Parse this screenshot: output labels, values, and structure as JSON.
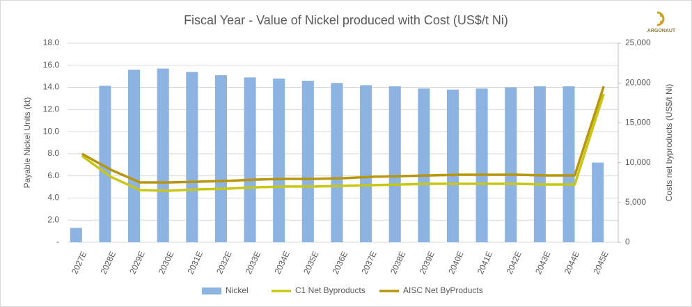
{
  "logo": "ARGONAUT",
  "chart_data": {
    "type": "bar-line",
    "title": "Fiscal Year - Value of Nickel produced with Cost (US$/t  Ni)",
    "ylabel": "Payable Nickel Units (kt)",
    "y2label": "Costs net byproducts (US$/t  Ni)",
    "categories": [
      "2027E",
      "2028E",
      "2029E",
      "2030E",
      "2031E",
      "2032E",
      "2033E",
      "2034E",
      "2035E",
      "2036E",
      "2037E",
      "2038E",
      "2039E",
      "2040E",
      "2041E",
      "2042E",
      "2043E",
      "2044E",
      "2045E"
    ],
    "series": [
      {
        "name": "Nickel",
        "type": "bar",
        "color": "#8db3e2",
        "values": [
          1.3,
          14.15,
          15.6,
          15.7,
          15.4,
          15.1,
          14.9,
          14.8,
          14.6,
          14.4,
          14.2,
          14.1,
          13.9,
          13.8,
          13.9,
          14.0,
          14.1,
          14.1,
          7.2
        ]
      },
      {
        "name": "C1 Net Byproducts",
        "type": "line",
        "axis": "y2",
        "color": "#c8c814",
        "values": [
          10840,
          8200,
          6550,
          6470,
          6640,
          6730,
          6900,
          7000,
          7000,
          7080,
          7170,
          7250,
          7340,
          7340,
          7340,
          7340,
          7250,
          7250,
          18620
        ]
      },
      {
        "name": "AISC Net ByProducts",
        "type": "line",
        "axis": "y2",
        "color": "#b8960c",
        "values": [
          11100,
          9090,
          7520,
          7520,
          7600,
          7700,
          7870,
          7950,
          7950,
          8040,
          8220,
          8300,
          8390,
          8480,
          8480,
          8480,
          8390,
          8390,
          19580
        ]
      }
    ],
    "ylim": [
      0,
      18
    ],
    "yticks": [
      {
        "value": 0,
        "label": "-"
      },
      {
        "value": 2,
        "label": "2.0"
      },
      {
        "value": 4,
        "label": "4.0"
      },
      {
        "value": 6,
        "label": "6.0"
      },
      {
        "value": 8,
        "label": "8.0"
      },
      {
        "value": 10,
        "label": "10.0"
      },
      {
        "value": 12,
        "label": "12.0"
      },
      {
        "value": 14,
        "label": "14.0"
      },
      {
        "value": 16,
        "label": "16.0"
      },
      {
        "value": 18,
        "label": "18.0"
      }
    ],
    "y2lim": [
      0,
      25000
    ],
    "y2ticks": [
      0,
      {
        "value": 5000,
        "label": "5,000"
      },
      {
        "value": 10000,
        "label": "10,000"
      },
      {
        "value": 15000,
        "label": "15,000"
      },
      {
        "value": 20000,
        "label": "20,000"
      },
      {
        "value": 25000,
        "label": "25,000"
      }
    ],
    "grid": true,
    "legend": "bottom"
  }
}
